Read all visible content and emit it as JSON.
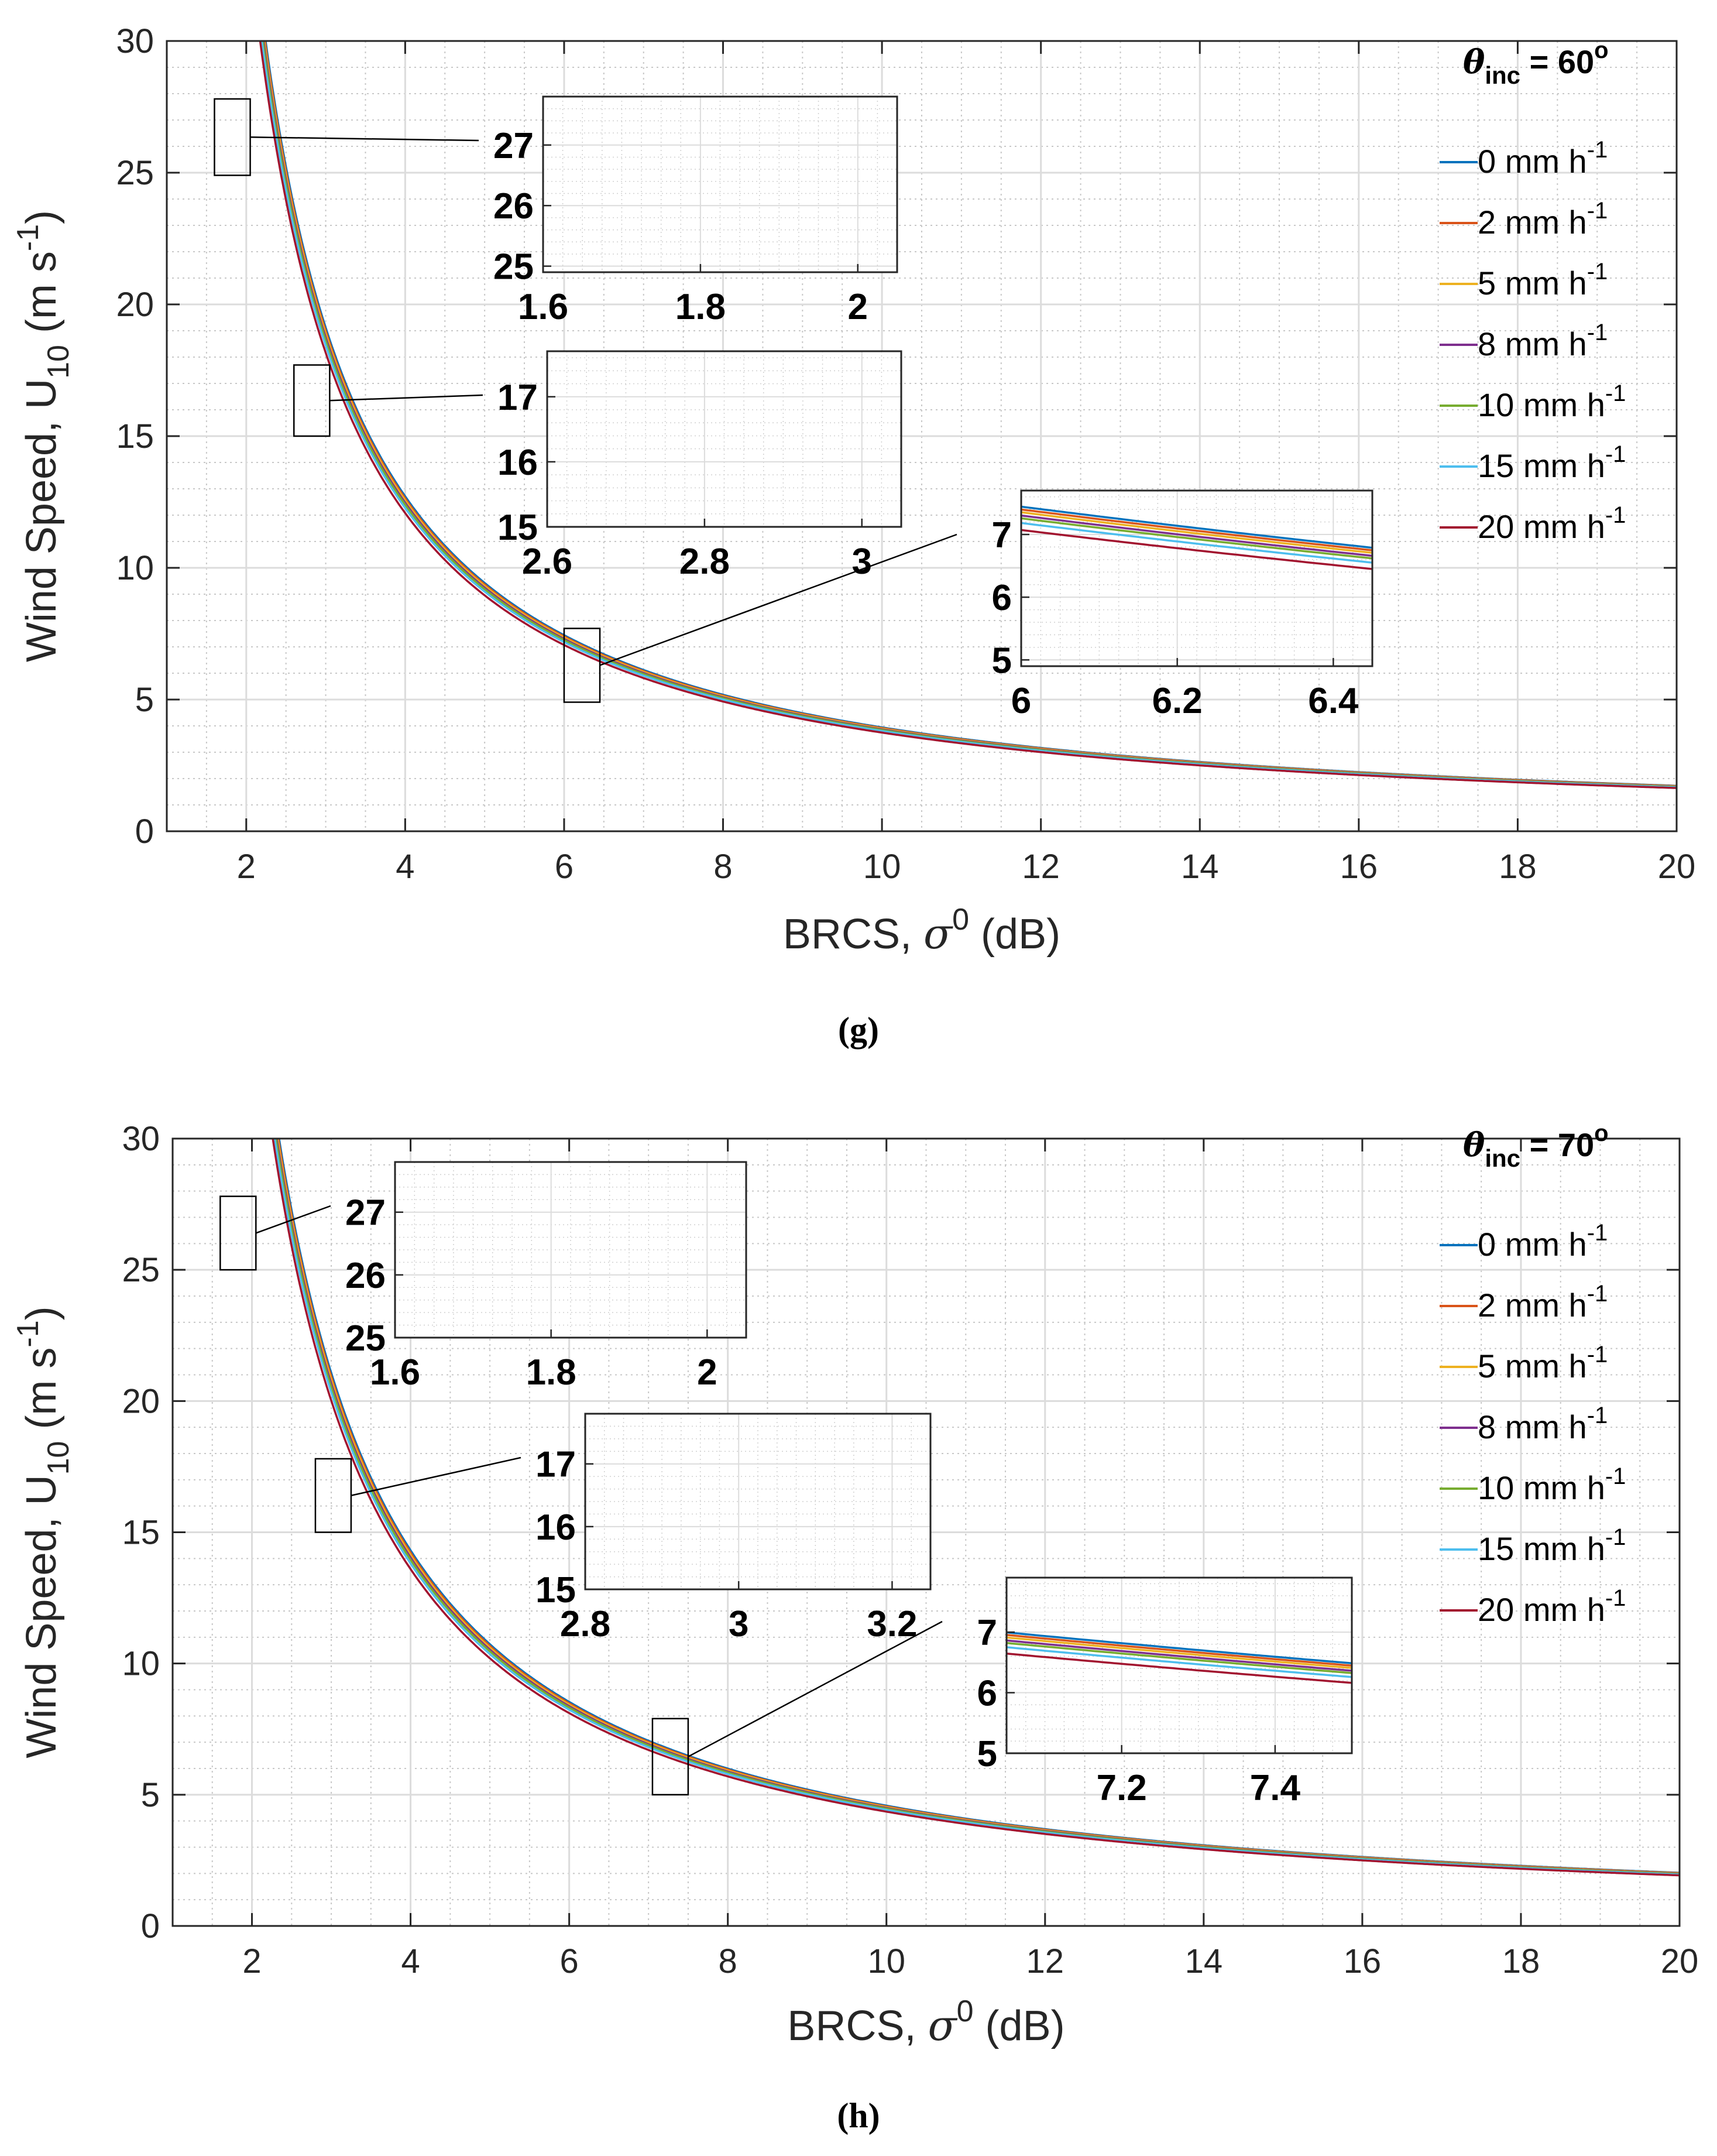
{
  "chart_data": [
    {
      "type": "line",
      "caption": "(g)",
      "xlabel": "BRCS, σ⁰ (dB)",
      "xlabel_parts": {
        "text": "BRCS, ",
        "sym": "σ",
        "sup": "0",
        "unit": " (dB)"
      },
      "ylabel": "Wind Speed, U₁₀ (m s⁻¹)",
      "ylabel_parts": {
        "text": "Wind Speed, U",
        "sub": "10",
        "unit": " (m s",
        "sup": "-1",
        "close": ")"
      },
      "xlim": [
        1,
        20
      ],
      "ylim": [
        0,
        30
      ],
      "xticks": [
        2,
        4,
        6,
        8,
        10,
        12,
        14,
        16,
        18,
        20
      ],
      "yticks": [
        0,
        5,
        10,
        15,
        20,
        25,
        30
      ],
      "grid": true,
      "legend_title": {
        "sym": "θ",
        "sub": "inc",
        "rest": " = 60",
        "sup": "o"
      },
      "legend_position": "top-right",
      "model": {
        "A": 49.0,
        "p": 1.13,
        "x0": 0.7
      },
      "series": [
        {
          "name": "0 mm h-1",
          "label": "0 mm h",
          "sup": "-1",
          "color": "#0072BD",
          "factor": 1.0
        },
        {
          "name": "2 mm h-1",
          "label": "2 mm h",
          "sup": "-1",
          "color": "#D95319",
          "factor": 0.994
        },
        {
          "name": "5 mm h-1",
          "label": "5 mm h",
          "sup": "-1",
          "color": "#EDB120",
          "factor": 0.988
        },
        {
          "name": "8 mm h-1",
          "label": "8 mm h",
          "sup": "-1",
          "color": "#7E2F8E",
          "factor": 0.981
        },
        {
          "name": "10 mm h-1",
          "label": "10 mm h",
          "sup": "-1",
          "color": "#77AC30",
          "factor": 0.975
        },
        {
          "name": "15 mm h-1",
          "label": "15 mm h",
          "sup": "-1",
          "color": "#4DBEEE",
          "factor": 0.965
        },
        {
          "name": "20 mm h-1",
          "label": "20 mm h",
          "sup": "-1",
          "color": "#A2142F",
          "factor": 0.95
        }
      ],
      "insets": [
        {
          "xlim": [
            1.6,
            2.05
          ],
          "ylim": [
            24.9,
            27.8
          ],
          "xticks": [
            1.6,
            1.8,
            2
          ],
          "xtick_labels": [
            "1.6",
            "1.8",
            "2"
          ],
          "yticks": [
            25,
            26,
            27
          ],
          "ytick_labels": [
            "25",
            "26",
            "27"
          ]
        },
        {
          "xlim": [
            2.6,
            3.05
          ],
          "ylim": [
            15.0,
            17.7
          ],
          "xticks": [
            2.6,
            2.8,
            3
          ],
          "xtick_labels": [
            "2.6",
            "2.8",
            "3"
          ],
          "yticks": [
            15,
            16,
            17
          ],
          "ytick_labels": [
            "15",
            "16",
            "17"
          ]
        },
        {
          "xlim": [
            6.0,
            6.45
          ],
          "ylim": [
            4.9,
            7.7
          ],
          "xticks": [
            6,
            6.2,
            6.4
          ],
          "xtick_labels": [
            "6",
            "6.2",
            "6.4"
          ],
          "yticks": [
            5,
            6,
            7
          ],
          "ytick_labels": [
            "5",
            "6",
            "7"
          ]
        }
      ]
    },
    {
      "type": "line",
      "caption": "(h)",
      "xlabel": "BRCS, σ⁰ (dB)",
      "xlabel_parts": {
        "text": "BRCS, ",
        "sym": "σ",
        "sup": "0",
        "unit": " (dB)"
      },
      "ylabel": "Wind Speed, U₁₀ (m s⁻¹)",
      "ylabel_parts": {
        "text": "Wind Speed, U",
        "sub": "10",
        "unit": " (m s",
        "sup": "-1",
        "close": ")"
      },
      "xlim": [
        1,
        20
      ],
      "ylim": [
        0,
        30
      ],
      "xticks": [
        2,
        4,
        6,
        8,
        10,
        12,
        14,
        16,
        18,
        20
      ],
      "yticks": [
        0,
        5,
        10,
        15,
        20,
        25,
        30
      ],
      "grid": true,
      "legend_title": {
        "sym": "θ",
        "sub": "inc",
        "rest": " = 70",
        "sup": "o"
      },
      "legend_position": "top-right",
      "model": {
        "A": 58.0,
        "p": 1.13,
        "x0": 0.55
      },
      "series": [
        {
          "name": "0 mm h-1",
          "label": "0 mm h",
          "sup": "-1",
          "color": "#0072BD",
          "factor": 1.0
        },
        {
          "name": "2 mm h-1",
          "label": "2 mm h",
          "sup": "-1",
          "color": "#D95319",
          "factor": 0.994
        },
        {
          "name": "5 mm h-1",
          "label": "5 mm h",
          "sup": "-1",
          "color": "#EDB120",
          "factor": 0.988
        },
        {
          "name": "8 mm h-1",
          "label": "8 mm h",
          "sup": "-1",
          "color": "#7E2F8E",
          "factor": 0.981
        },
        {
          "name": "10 mm h-1",
          "label": "10 mm h",
          "sup": "-1",
          "color": "#77AC30",
          "factor": 0.975
        },
        {
          "name": "15 mm h-1",
          "label": "15 mm h",
          "sup": "-1",
          "color": "#4DBEEE",
          "factor": 0.965
        },
        {
          "name": "20 mm h-1",
          "label": "20 mm h",
          "sup": "-1",
          "color": "#A2142F",
          "factor": 0.95
        }
      ],
      "insets": [
        {
          "xlim": [
            1.6,
            2.05
          ],
          "ylim": [
            25.0,
            27.8
          ],
          "xticks": [
            1.6,
            1.8,
            2
          ],
          "xtick_labels": [
            "1.6",
            "1.8",
            "2"
          ],
          "yticks": [
            25,
            26,
            27
          ],
          "ytick_labels": [
            "25",
            "26",
            "27"
          ]
        },
        {
          "xlim": [
            2.8,
            3.25
          ],
          "ylim": [
            15.0,
            17.8
          ],
          "xticks": [
            2.8,
            3,
            3.2
          ],
          "xtick_labels": [
            "2.8",
            "3",
            "3.2"
          ],
          "yticks": [
            15,
            16,
            17
          ],
          "ytick_labels": [
            "15",
            "16",
            "17"
          ]
        },
        {
          "xlim": [
            7.05,
            7.5
          ],
          "ylim": [
            5.0,
            7.9
          ],
          "xticks": [
            7.2,
            7.4
          ],
          "xtick_labels": [
            "7.2",
            "7.4"
          ],
          "yticks": [
            5,
            6,
            7
          ],
          "ytick_labels": [
            "5",
            "6",
            "7"
          ]
        }
      ]
    }
  ]
}
